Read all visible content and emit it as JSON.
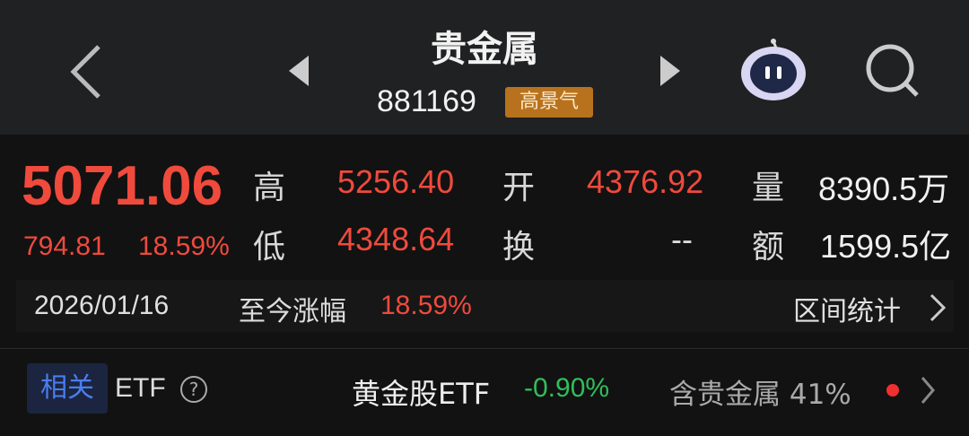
{
  "header": {
    "title": "贵金属",
    "code": "881169",
    "badge": "高景气",
    "icons": [
      "back-chevron-icon",
      "prev-triangle-icon",
      "next-triangle-icon",
      "robot-assistant-icon",
      "search-icon"
    ]
  },
  "quote": {
    "price": "5071.06",
    "change": "794.81",
    "change_pct": "18.59%",
    "high_label": "高",
    "high": "5256.40",
    "low_label": "低",
    "low": "4348.64",
    "open_label": "开",
    "open": "4376.92",
    "turnover_label": "换",
    "turnover": "--",
    "volume_label": "量",
    "volume": "8390.5万",
    "amount_label": "额",
    "amount": "1599.5亿"
  },
  "range": {
    "date": "2026/01/16",
    "label": "至今涨幅",
    "value": "18.59%",
    "stats_link": "区间统计"
  },
  "etf": {
    "tag": "相关",
    "label": "ETF",
    "name": "黄金股ETF",
    "change": "-0.90%",
    "holding": "含贵金属 41%"
  },
  "colors": {
    "up": "#f04a3d",
    "down": "#2fbf5b",
    "badge": "#b8721d",
    "header_bg": "#202122"
  }
}
